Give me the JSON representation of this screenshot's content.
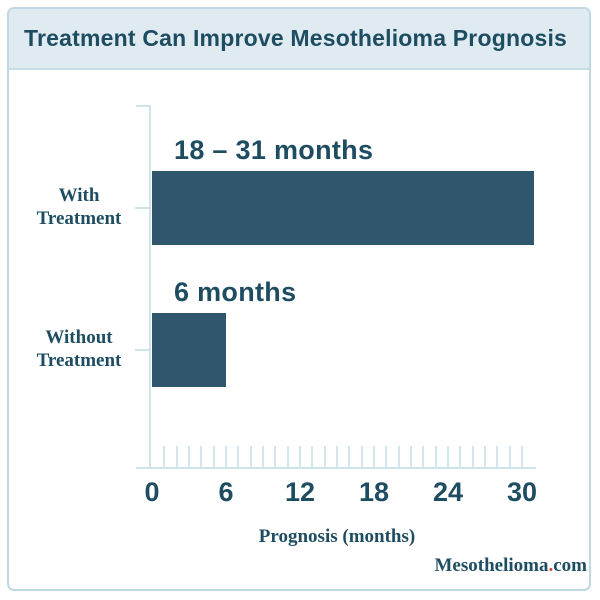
{
  "header": {
    "title": "Treatment Can Improve Mesothelioma Prognosis"
  },
  "chart_data": {
    "type": "bar",
    "orientation": "horizontal",
    "title": "Treatment Can Improve Mesothelioma Prognosis",
    "categories": [
      "With Treatment",
      "Without Treatment"
    ],
    "values": [
      31,
      6
    ],
    "bar_labels": [
      "18 – 31 months",
      "6 months"
    ],
    "xlabel": "Prognosis (months)",
    "x_ticks": [
      0,
      6,
      12,
      18,
      24,
      30
    ],
    "xlim": [
      0,
      31
    ],
    "minor_tick_interval_months": 1,
    "grid": false,
    "legend": false,
    "bar_color": "#2f566d"
  },
  "watermark": {
    "brand": "Mesothelioma",
    "dot": ".",
    "tld": "com"
  },
  "colors": {
    "ink": "#1e4d62",
    "bar": "#2f566d",
    "header_background": "#dfeaf1",
    "card_border": "#bed8e4",
    "axis": "#cfe3ed",
    "watermark_dot": "#d14836"
  }
}
